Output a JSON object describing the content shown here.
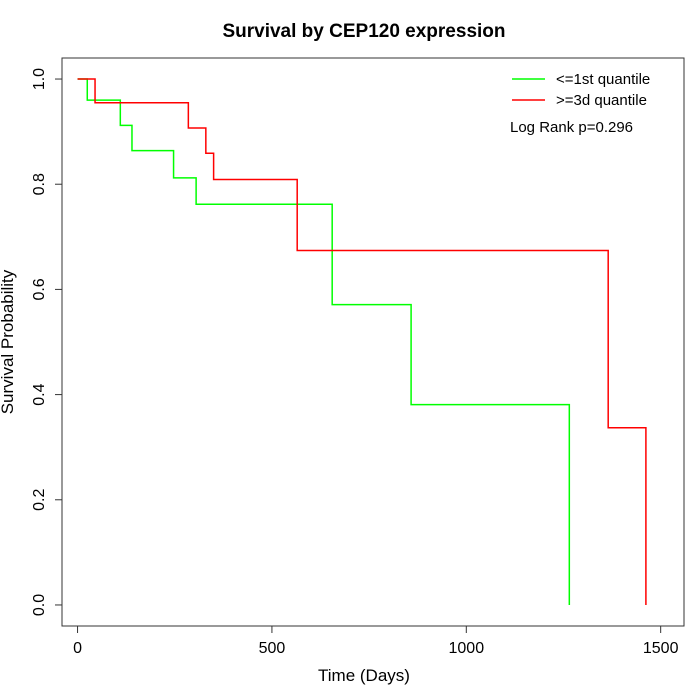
{
  "chart_data": {
    "type": "line",
    "subtype": "kaplan-meier-step",
    "title": "Survival by CEP120 expression",
    "xlabel": "Time (Days)",
    "ylabel": "Survival Probability",
    "xlim": [
      -40,
      1560
    ],
    "ylim": [
      -0.04,
      1.04
    ],
    "xticks": [
      0,
      500,
      1000,
      1500
    ],
    "yticks": [
      0.0,
      0.2,
      0.4,
      0.6,
      0.8,
      1.0
    ],
    "xtick_labels": [
      "0",
      "500",
      "1000",
      "1500"
    ],
    "ytick_labels": [
      "0.0",
      "0.2",
      "0.4",
      "0.6",
      "0.8",
      "1.0"
    ],
    "legend_position": "top-right",
    "grid": false,
    "annotation": "Log Rank p=0.296",
    "series": [
      {
        "name": "<=1st quantile",
        "color": "#00ff00",
        "x": [
          0,
          25,
          110,
          140,
          247,
          305,
          655,
          858,
          1265,
          1265
        ],
        "y": [
          1.0,
          0.96,
          0.912,
          0.864,
          0.812,
          0.762,
          0.571,
          0.381,
          0.381,
          0.0
        ]
      },
      {
        "name": ">=3d quantile",
        "color": "#ff0000",
        "x": [
          0,
          45,
          285,
          330,
          350,
          565,
          1365,
          1462,
          1462
        ],
        "y": [
          1.0,
          0.955,
          0.907,
          0.859,
          0.809,
          0.674,
          0.337,
          0.337,
          0.0
        ]
      }
    ]
  }
}
